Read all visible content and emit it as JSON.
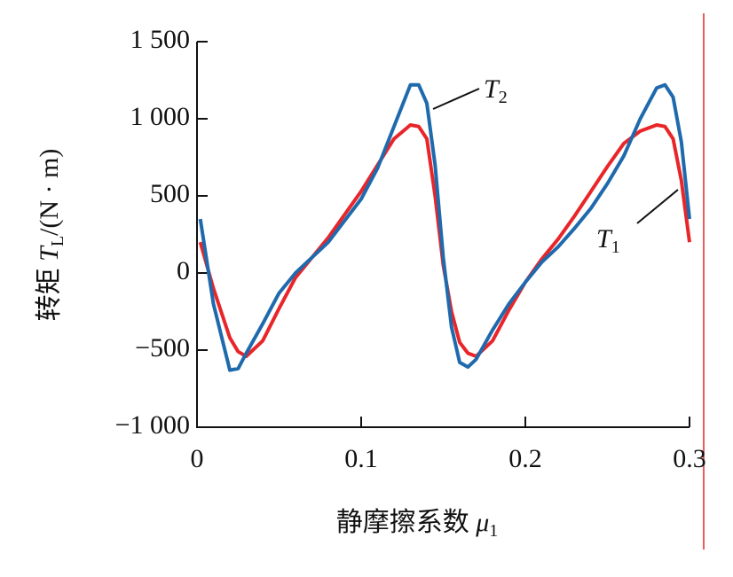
{
  "chart_data": {
    "type": "line",
    "ylabel": {
      "prefix": "转矩 ",
      "symbol": "T",
      "sub": "L",
      "unit": "/(N · m)"
    },
    "xlabel": {
      "prefix": "静摩擦系数 ",
      "symbol": "μ",
      "sub": "1"
    },
    "x": [
      0.002,
      0.01,
      0.02,
      0.025,
      0.03,
      0.04,
      0.05,
      0.06,
      0.07,
      0.08,
      0.09,
      0.1,
      0.11,
      0.12,
      0.13,
      0.135,
      0.14,
      0.145,
      0.15,
      0.155,
      0.16,
      0.165,
      0.17,
      0.18,
      0.19,
      0.2,
      0.21,
      0.22,
      0.23,
      0.24,
      0.25,
      0.26,
      0.27,
      0.28,
      0.285,
      0.29,
      0.295,
      0.3
    ],
    "series": [
      {
        "name": "T1",
        "color": "#e8262a",
        "values": [
          200,
          -100,
          -420,
          -510,
          -540,
          -440,
          -230,
          -30,
          100,
          230,
          380,
          530,
          700,
          870,
          960,
          950,
          870,
          500,
          50,
          -250,
          -450,
          -520,
          -540,
          -440,
          -240,
          -60,
          90,
          220,
          370,
          530,
          690,
          840,
          920,
          960,
          950,
          870,
          600,
          200
        ]
      },
      {
        "name": "T2",
        "color": "#1f6aad",
        "values": [
          350,
          -200,
          -630,
          -620,
          -520,
          -330,
          -130,
          0,
          100,
          200,
          340,
          480,
          680,
          950,
          1220,
          1220,
          1100,
          700,
          100,
          -350,
          -580,
          -610,
          -560,
          -370,
          -200,
          -60,
          70,
          170,
          290,
          420,
          580,
          760,
          1000,
          1200,
          1220,
          1140,
          850,
          350
        ]
      }
    ],
    "xlim": [
      0,
      0.3
    ],
    "xticks": [
      0,
      0.1,
      0.2,
      0.3
    ],
    "ylim": [
      -1000,
      1500
    ],
    "yticks": [
      {
        "value": -1000,
        "label": "−1 000"
      },
      {
        "value": -500,
        "label": "−500"
      },
      0,
      500,
      {
        "value": 1000,
        "label": "1 000"
      },
      {
        "value": 1500,
        "label": "1 500"
      }
    ]
  }
}
